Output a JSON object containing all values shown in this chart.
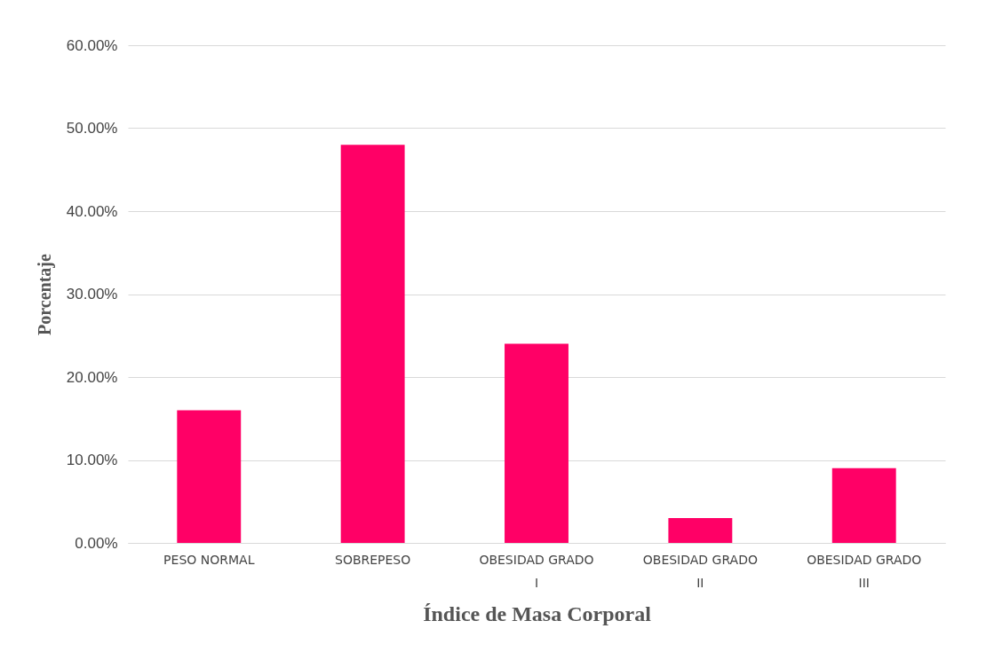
{
  "chart_data": {
    "type": "bar",
    "xlabel": "Índice de Masa Corporal",
    "ylabel": "Porcentaje",
    "categories": [
      "PESO NORMAL",
      "SOBREPESO",
      "OBESIDAD GRADO I",
      "OBESIDAD GRADO II",
      "OBESIDAD GRADO III"
    ],
    "values": [
      16,
      48,
      24,
      3,
      9
    ],
    "color": "#ff0066",
    "ylim": [
      0,
      60
    ],
    "yticks": [
      {
        "value": 0,
        "label": "0.00%"
      },
      {
        "value": 10,
        "label": "10.00%"
      },
      {
        "value": 20,
        "label": "20.00%"
      },
      {
        "value": 30,
        "label": "30.00%"
      },
      {
        "value": 40,
        "label": "40.00%"
      },
      {
        "value": 50,
        "label": "50.00%"
      },
      {
        "value": 60,
        "label": "60.00%"
      }
    ],
    "grid": "y"
  }
}
